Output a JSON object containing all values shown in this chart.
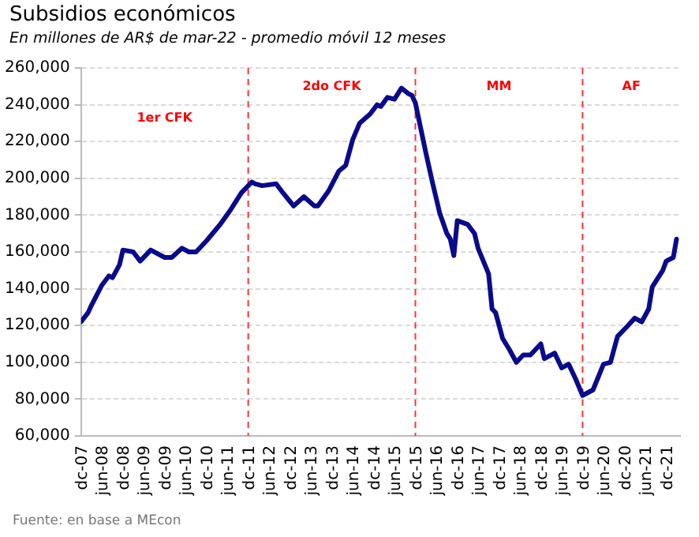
{
  "chart_data": {
    "type": "line",
    "title": "Subsidios económicos",
    "subtitle": "En millones de AR$ de mar-22 - promedio móvil 12 meses",
    "x": [
      "2007-12",
      "2008-02",
      "2008-03",
      "2008-06",
      "2008-08",
      "2008-09",
      "2008-11",
      "2008-12",
      "2009-03",
      "2009-05",
      "2009-08",
      "2009-12",
      "2010-02",
      "2010-05",
      "2010-07",
      "2010-09",
      "2010-12",
      "2011-04",
      "2011-07",
      "2011-10",
      "2012-01",
      "2012-02",
      "2012-04",
      "2012-08",
      "2012-10",
      "2013-01",
      "2013-04",
      "2013-07",
      "2013-08",
      "2013-11",
      "2014-02",
      "2014-04",
      "2014-06",
      "2014-08",
      "2014-11",
      "2015-01",
      "2015-02",
      "2015-04",
      "2015-06",
      "2015-08",
      "2015-10",
      "2015-11",
      "2015-12",
      "2016-03",
      "2016-05",
      "2016-07",
      "2016-09",
      "2016-10",
      "2016-11",
      "2016-12",
      "2017-03",
      "2017-05",
      "2017-06",
      "2017-09",
      "2017-10",
      "2017-11",
      "2018-01",
      "2018-03",
      "2018-05",
      "2018-07",
      "2018-09",
      "2018-12",
      "2019-01",
      "2019-04",
      "2019-06",
      "2019-08",
      "2019-10",
      "2019-12",
      "2020-03",
      "2020-06",
      "2020-08",
      "2020-10",
      "2021-01",
      "2021-03",
      "2021-05",
      "2021-07",
      "2021-08",
      "2021-11",
      "2021-12",
      "2022-02",
      "2022-03"
    ],
    "series": [
      {
        "color": "#0a0a8c",
        "values": [
          122000,
          127000,
          131000,
          142000,
          147000,
          146000,
          153000,
          161000,
          160000,
          155000,
          161000,
          157000,
          157000,
          162000,
          160000,
          160000,
          166000,
          175000,
          183000,
          192000,
          198000,
          197000,
          196000,
          197000,
          192000,
          185000,
          190000,
          185000,
          185000,
          193000,
          204000,
          207000,
          221000,
          230000,
          235000,
          240000,
          239000,
          244000,
          243000,
          249000,
          246000,
          245000,
          241000,
          214000,
          197000,
          181000,
          170000,
          167000,
          158000,
          177000,
          175000,
          170000,
          162000,
          148000,
          129000,
          127000,
          113000,
          107000,
          100000,
          104000,
          104000,
          110000,
          102000,
          105000,
          97000,
          99000,
          91000,
          82000,
          85000,
          99000,
          100000,
          114000,
          120000,
          124000,
          122000,
          129000,
          141000,
          150000,
          155000,
          157000,
          167000
        ]
      }
    ],
    "xlim": [
      "2007-12",
      "2022-04"
    ],
    "xticks": [
      {
        "value": "2007-12",
        "label": "dc-07"
      },
      {
        "value": "2008-06",
        "label": "jun-08"
      },
      {
        "value": "2008-12",
        "label": "dc-08"
      },
      {
        "value": "2009-06",
        "label": "jun-09"
      },
      {
        "value": "2009-12",
        "label": "dc-09"
      },
      {
        "value": "2010-06",
        "label": "jun-10"
      },
      {
        "value": "2010-12",
        "label": "dc-10"
      },
      {
        "value": "2011-06",
        "label": "jun-11"
      },
      {
        "value": "2011-12",
        "label": "dc-11"
      },
      {
        "value": "2012-06",
        "label": "jun-12"
      },
      {
        "value": "2012-12",
        "label": "dc-12"
      },
      {
        "value": "2013-06",
        "label": "jun-13"
      },
      {
        "value": "2013-12",
        "label": "dc-13"
      },
      {
        "value": "2014-06",
        "label": "jun-14"
      },
      {
        "value": "2014-12",
        "label": "dc-14"
      },
      {
        "value": "2015-06",
        "label": "jun-15"
      },
      {
        "value": "2015-12",
        "label": "dc-15"
      },
      {
        "value": "2016-06",
        "label": "jun-16"
      },
      {
        "value": "2016-12",
        "label": "dc-16"
      },
      {
        "value": "2017-06",
        "label": "jun-17"
      },
      {
        "value": "2017-12",
        "label": "dc-17"
      },
      {
        "value": "2018-06",
        "label": "jun-18"
      },
      {
        "value": "2018-12",
        "label": "dc-18"
      },
      {
        "value": "2019-06",
        "label": "jun-19"
      },
      {
        "value": "2019-12",
        "label": "dc-19"
      },
      {
        "value": "2020-06",
        "label": "jun-20"
      },
      {
        "value": "2020-12",
        "label": "dc-20"
      },
      {
        "value": "2021-06",
        "label": "jun-21"
      },
      {
        "value": "2021-12",
        "label": "dc-21"
      }
    ],
    "ylim": [
      60000,
      260000
    ],
    "yticks": [
      {
        "value": 60000,
        "label": "60,000"
      },
      {
        "value": 80000,
        "label": "80,000"
      },
      {
        "value": 100000,
        "label": "100,000"
      },
      {
        "value": 120000,
        "label": "120,000"
      },
      {
        "value": 140000,
        "label": "140,000"
      },
      {
        "value": 160000,
        "label": "160,000"
      },
      {
        "value": 180000,
        "label": "180,000"
      },
      {
        "value": 200000,
        "label": "200,000"
      },
      {
        "value": 220000,
        "label": "220,000"
      },
      {
        "value": 240000,
        "label": "240,000"
      },
      {
        "value": 260000,
        "label": "260,000"
      }
    ],
    "ref_lines": [
      {
        "axis": "x",
        "value": "2011-12",
        "color": "#ff3333",
        "line_style": "dashed"
      },
      {
        "axis": "x",
        "value": "2015-12",
        "color": "#ff3333",
        "line_style": "dashed"
      },
      {
        "axis": "x",
        "value": "2019-12",
        "color": "#ff3333",
        "line_style": "dashed"
      }
    ],
    "annotations": [
      "1er CFK",
      "2do CFK",
      "MM",
      "AF",
      "Fuente: en base a MEcon"
    ],
    "grid": "y",
    "legend": false,
    "marker": "none",
    "line_style": "solid"
  }
}
